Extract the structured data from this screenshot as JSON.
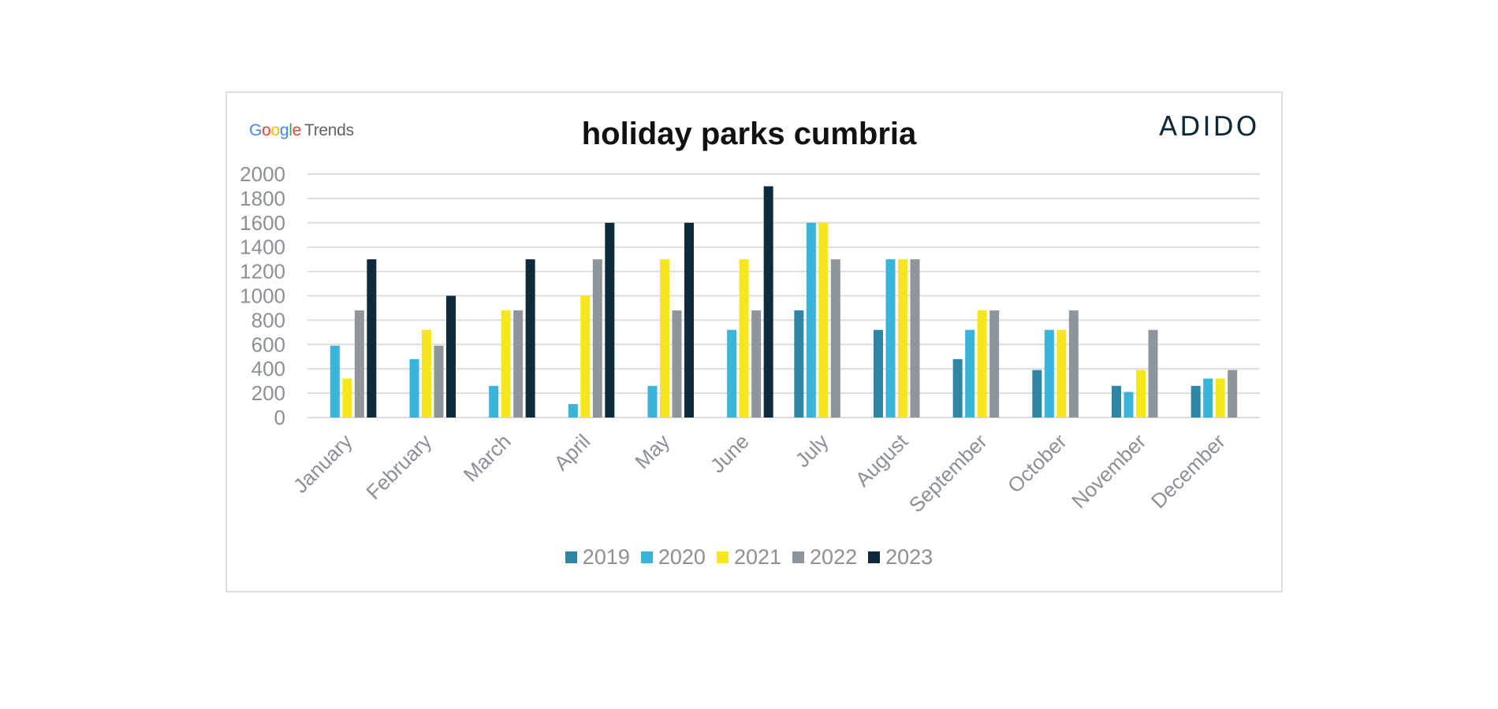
{
  "logos": {
    "google_trends": {
      "google": [
        "G",
        "o",
        "o",
        "g",
        "l",
        "e"
      ],
      "trends": "Trends"
    },
    "adido": "ADIDO"
  },
  "colors": {
    "2019": "#2e86a3",
    "2020": "#3ab4d9",
    "2021": "#f6e61d",
    "2022": "#8e969c",
    "2023": "#0f2a3b",
    "grid": "#dcdcdc",
    "tick_text": "#8a9095"
  },
  "chart_data": {
    "type": "bar",
    "title": "holiday parks cumbria",
    "categories": [
      "January",
      "February",
      "March",
      "April",
      "May",
      "June",
      "July",
      "August",
      "September",
      "October",
      "November",
      "December"
    ],
    "ylim": [
      0,
      2000
    ],
    "yticks": [
      0,
      200,
      400,
      600,
      800,
      1000,
      1200,
      1400,
      1600,
      1800,
      2000
    ],
    "grid": true,
    "legend_position": "bottom",
    "series": [
      {
        "name": "2019",
        "values": [
          0,
          0,
          0,
          0,
          0,
          0,
          880,
          720,
          480,
          390,
          260,
          260
        ]
      },
      {
        "name": "2020",
        "values": [
          590,
          480,
          260,
          110,
          260,
          720,
          1600,
          1300,
          720,
          720,
          210,
          320
        ]
      },
      {
        "name": "2021",
        "values": [
          320,
          720,
          880,
          1000,
          1300,
          1300,
          1600,
          1300,
          880,
          720,
          390,
          320
        ]
      },
      {
        "name": "2022",
        "values": [
          880,
          590,
          880,
          1300,
          880,
          880,
          1300,
          1300,
          880,
          880,
          720,
          390
        ]
      },
      {
        "name": "2023",
        "values": [
          1300,
          1000,
          1300,
          1600,
          1600,
          1900,
          0,
          0,
          0,
          0,
          0,
          0
        ]
      }
    ]
  }
}
